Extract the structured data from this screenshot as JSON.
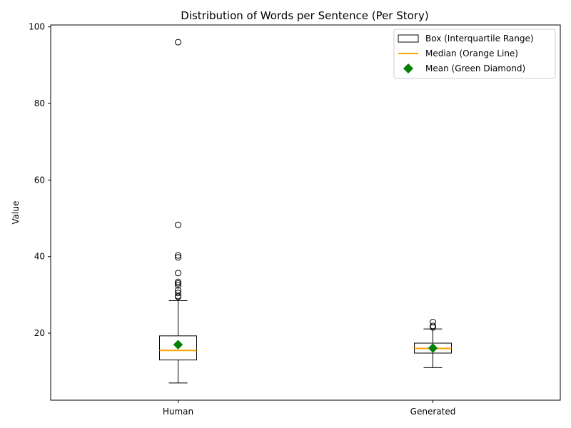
{
  "chart_data": {
    "type": "box",
    "title": "Distribution of Words per Sentence (Per Story)",
    "xlabel": "",
    "ylabel": "Value",
    "ylim": [
      2.5,
      100.5
    ],
    "yticks": [
      20,
      40,
      60,
      80,
      100
    ],
    "categories": [
      "Human",
      "Generated"
    ],
    "boxes": [
      {
        "name": "Human",
        "whisker_low": 7.0,
        "q1": 13.0,
        "median": 15.5,
        "q3": 19.3,
        "whisker_high": 28.5,
        "mean": 17.0,
        "outliers": [
          29.5,
          29.7,
          30.5,
          31.2,
          32.5,
          33.0,
          33.4,
          35.7,
          39.8,
          40.3,
          48.3,
          96.0
        ]
      },
      {
        "name": "Generated",
        "whisker_low": 11.0,
        "q1": 14.8,
        "median": 16.0,
        "q3": 17.4,
        "whisker_high": 21.1,
        "mean": 16.1,
        "outliers": [
          21.5,
          21.9,
          22.9
        ]
      }
    ],
    "legend": {
      "position": "top-right",
      "entries": [
        {
          "label": "Box (Interquartile Range)",
          "kind": "box"
        },
        {
          "label": "Median (Orange Line)",
          "kind": "median"
        },
        {
          "label": "Mean (Green Diamond)",
          "kind": "mean"
        }
      ]
    },
    "colors": {
      "box": "#000000",
      "median": "#ffa500",
      "mean": "#008000"
    },
    "grid": false
  }
}
